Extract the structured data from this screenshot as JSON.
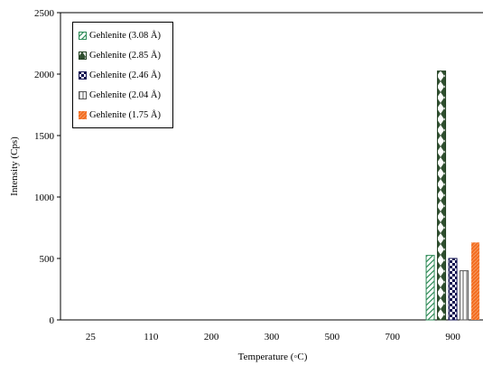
{
  "chart_data": {
    "type": "bar",
    "categories": [
      "25",
      "110",
      "200",
      "300",
      "500",
      "700",
      "900"
    ],
    "series": [
      {
        "name": "Gehlenite (3.08 Å)",
        "values": [
          0,
          0,
          0,
          0,
          0,
          0,
          525
        ],
        "color": "#2e8b57",
        "pattern": "diagonal-hatch"
      },
      {
        "name": "Gehlenite (2.85 Å)",
        "values": [
          0,
          0,
          0,
          0,
          0,
          0,
          2025
        ],
        "color": "#1e3d1e",
        "pattern": "diamond"
      },
      {
        "name": "Gehlenite (2.46 Å)",
        "values": [
          0,
          0,
          0,
          0,
          0,
          0,
          500
        ],
        "color": "#101050",
        "pattern": "checker"
      },
      {
        "name": "Gehlenite (2.04 Å)",
        "values": [
          0,
          0,
          0,
          0,
          0,
          0,
          400
        ],
        "color": "#555555",
        "pattern": "vertical-lines"
      },
      {
        "name": "Gehlenite (1.75 Å)",
        "values": [
          0,
          0,
          0,
          0,
          0,
          0,
          630
        ],
        "color": "#f26d21",
        "pattern": "orange-mesh"
      }
    ],
    "xlabel": "Temperature (◦C)",
    "ylabel": "Intensity (Cps)",
    "ylim": [
      0,
      2500
    ],
    "yticks": [
      "0",
      "500",
      "1000",
      "1500",
      "2000",
      "2500"
    ],
    "grid": false,
    "legend_position": "top-left"
  }
}
